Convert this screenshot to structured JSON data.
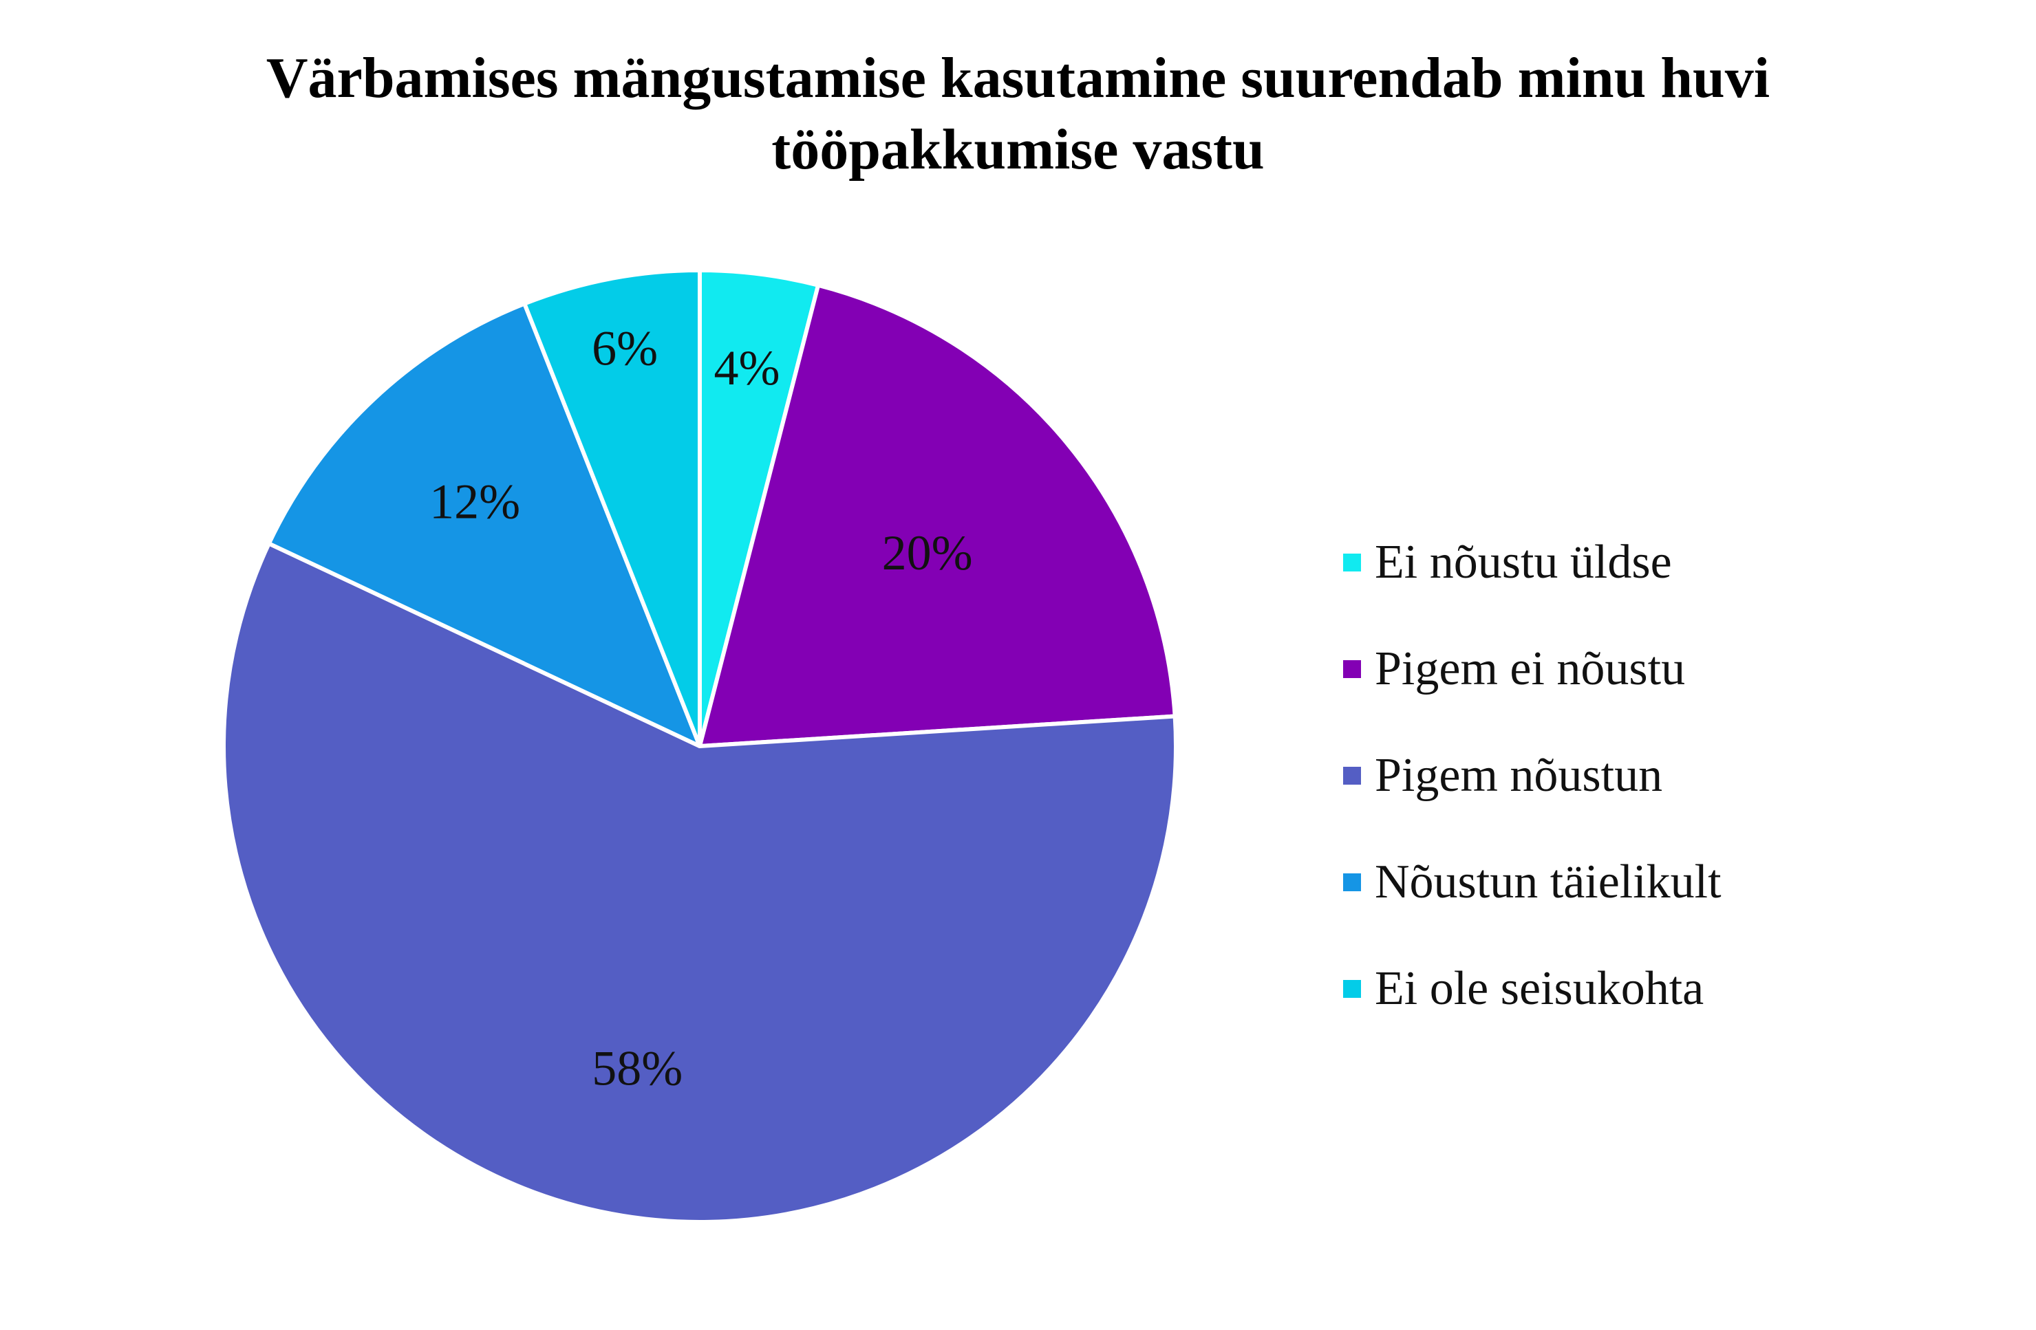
{
  "chart_data": {
    "type": "pie",
    "title_lines": [
      "Värbamises mängustamise kasutamine suurendab minu huvi",
      "tööpakkumise vastu"
    ],
    "categories": [
      "Ei nõustu üldse",
      "Pigem ei nõustu",
      "Pigem nõustun",
      "Nõustun täielikult",
      "Ei ole seisukohta"
    ],
    "values": [
      4,
      20,
      58,
      12,
      6
    ],
    "labels": [
      "4%",
      "20%",
      "58%",
      "12%",
      "6%"
    ],
    "colors": [
      "#11EAF0",
      "#8300B4",
      "#545EC4",
      "#1595E5",
      "#03CCE8"
    ],
    "start_angle": "12 o'clock",
    "direction": "clockwise",
    "legend_position": "right"
  }
}
